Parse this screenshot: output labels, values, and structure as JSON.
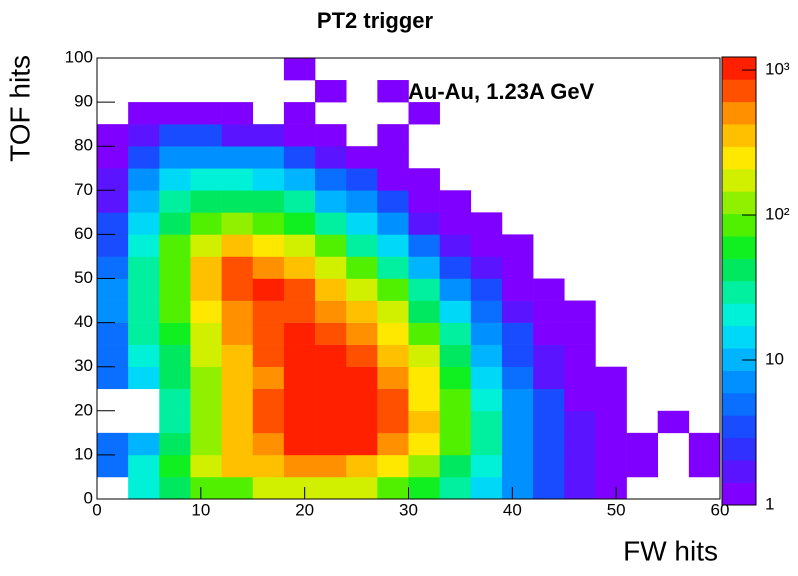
{
  "chart_data": {
    "type": "heatmap",
    "title": "PT2 trigger",
    "annotation": "Au-Au, 1.23A GeV",
    "x_label": "FW hits",
    "y_label": "TOF hits",
    "xlim": [
      0,
      60
    ],
    "ylim": [
      0,
      100
    ],
    "xticks": [
      0,
      10,
      20,
      30,
      40,
      50,
      60
    ],
    "yticks": [
      0,
      10,
      20,
      30,
      40,
      50,
      60,
      70,
      80,
      90,
      100
    ],
    "xbins": [
      0,
      3,
      6,
      9,
      12,
      15,
      18,
      21,
      24,
      27,
      30,
      33,
      36,
      39,
      42,
      45,
      48,
      51,
      54,
      57,
      60
    ],
    "ybins": [
      0,
      5,
      10,
      15,
      20,
      25,
      30,
      35,
      40,
      45,
      50,
      55,
      60,
      65,
      70,
      75,
      80,
      85,
      90,
      95,
      100
    ],
    "z": [
      [
        null,
        20,
        50,
        80,
        100,
        150,
        200,
        200,
        150,
        100,
        60,
        30,
        15,
        8,
        4,
        2,
        1,
        null,
        null,
        null
      ],
      [
        5,
        20,
        60,
        150,
        300,
        400,
        500,
        500,
        400,
        250,
        120,
        50,
        20,
        8,
        4,
        2,
        1,
        1,
        null,
        1
      ],
      [
        5,
        10,
        40,
        120,
        300,
        600,
        900,
        1000,
        900,
        600,
        250,
        80,
        25,
        8,
        3,
        2,
        1,
        1,
        null,
        1
      ],
      [
        null,
        null,
        30,
        120,
        350,
        700,
        1000,
        1100,
        1000,
        700,
        300,
        90,
        25,
        8,
        3,
        2,
        1,
        null,
        1,
        null
      ],
      [
        null,
        null,
        35,
        130,
        350,
        650,
        1000,
        1100,
        1000,
        700,
        280,
        80,
        20,
        6,
        3,
        1,
        1,
        null,
        null,
        null
      ],
      [
        5,
        15,
        40,
        140,
        350,
        600,
        1000,
        1100,
        900,
        600,
        220,
        60,
        15,
        5,
        2,
        1,
        1,
        null,
        null,
        null
      ],
      [
        5,
        20,
        50,
        160,
        400,
        650,
        1000,
        1000,
        800,
        400,
        150,
        40,
        10,
        4,
        2,
        1,
        null,
        null,
        null,
        null
      ],
      [
        5,
        25,
        60,
        200,
        450,
        700,
        900,
        800,
        600,
        280,
        90,
        25,
        8,
        3,
        1,
        1,
        null,
        null,
        null,
        null
      ],
      [
        6,
        30,
        80,
        250,
        600,
        800,
        800,
        600,
        350,
        150,
        50,
        15,
        5,
        2,
        1,
        1,
        null,
        null,
        null,
        null
      ],
      [
        6,
        30,
        100,
        350,
        800,
        900,
        700,
        400,
        200,
        80,
        25,
        8,
        3,
        1,
        1,
        null,
        null,
        null,
        null,
        null
      ],
      [
        5,
        25,
        100,
        350,
        700,
        600,
        350,
        200,
        90,
        35,
        12,
        4,
        2,
        1,
        null,
        null,
        null,
        null,
        null,
        null
      ],
      [
        4,
        20,
        80,
        200,
        300,
        250,
        150,
        80,
        35,
        14,
        5,
        2,
        1,
        1,
        null,
        null,
        null,
        null,
        null,
        null
      ],
      [
        3,
        15,
        50,
        100,
        120,
        100,
        60,
        30,
        14,
        6,
        2,
        1,
        1,
        null,
        null,
        null,
        null,
        null,
        null,
        null
      ],
      [
        2,
        10,
        30,
        50,
        50,
        40,
        25,
        12,
        6,
        3,
        1,
        1,
        null,
        null,
        null,
        null,
        null,
        null,
        null,
        null
      ],
      [
        2,
        6,
        15,
        20,
        20,
        15,
        10,
        5,
        3,
        1,
        1,
        null,
        null,
        null,
        null,
        null,
        null,
        null,
        null,
        null
      ],
      [
        1,
        4,
        7,
        8,
        8,
        6,
        4,
        2,
        1,
        1,
        null,
        null,
        null,
        null,
        null,
        null,
        null,
        null,
        null,
        null
      ],
      [
        1,
        2,
        3,
        3,
        2,
        2,
        1,
        1,
        null,
        1,
        null,
        null,
        null,
        null,
        null,
        null,
        null,
        null,
        null,
        null
      ],
      [
        null,
        1,
        1,
        1,
        1,
        null,
        1,
        null,
        null,
        null,
        1,
        null,
        null,
        null,
        null,
        null,
        null,
        null,
        null,
        null
      ],
      [
        null,
        null,
        null,
        null,
        null,
        null,
        null,
        1,
        null,
        1,
        null,
        null,
        null,
        null,
        null,
        null,
        null,
        null,
        null,
        null
      ],
      [
        null,
        null,
        null,
        null,
        null,
        null,
        1,
        null,
        null,
        null,
        null,
        null,
        null,
        null,
        null,
        null,
        null,
        null,
        null,
        null
      ]
    ],
    "zlim": [
      1,
      1230
    ],
    "zscale": "log",
    "zticks": [
      1,
      10,
      {
        "value": 100,
        "label": "10²"
      },
      {
        "value": 1000,
        "label": "10³"
      }
    ],
    "colors": [
      "#8000ff",
      "#5a14ff",
      "#3030ff",
      "#1a4cff",
      "#0a6eff",
      "#0090ff",
      "#00b4ff",
      "#00d8f8",
      "#00f0d8",
      "#00f0a0",
      "#00e860",
      "#10f020",
      "#50f000",
      "#90f000",
      "#d0f000",
      "#ffe800",
      "#ffc000",
      "#ff9000",
      "#ff5000",
      "#ff2000"
    ]
  }
}
